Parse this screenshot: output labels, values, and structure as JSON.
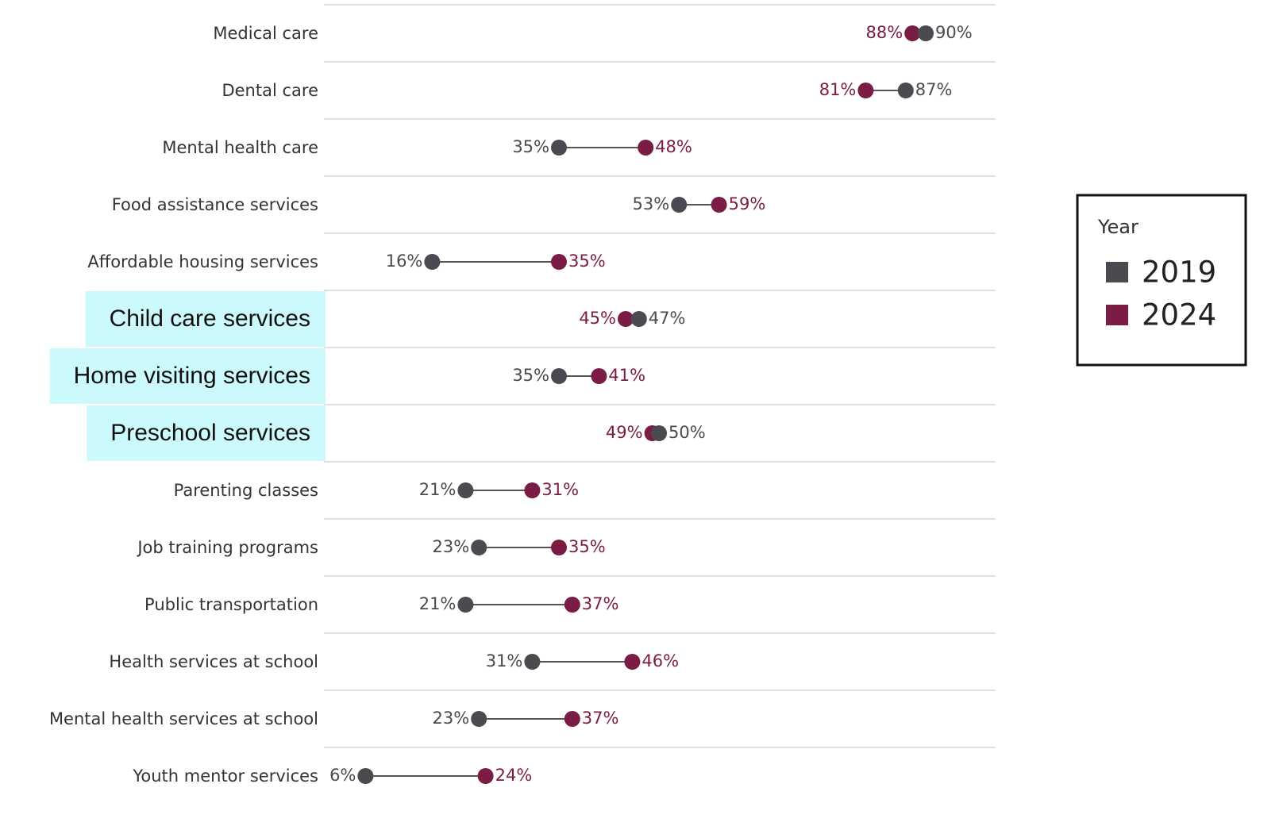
{
  "chart_data": {
    "type": "dumbbell",
    "categories": [
      "Medical care",
      "Dental care",
      "Mental health care",
      "Food assistance services",
      "Affordable housing services",
      "Child care services",
      "Home visiting services",
      "Preschool services",
      "Parenting classes",
      "Job training programs",
      "Public transportation",
      "Health services at school",
      "Mental health services at school",
      "Youth mentor services"
    ],
    "highlighted": [
      false,
      false,
      false,
      false,
      false,
      true,
      true,
      true,
      false,
      false,
      false,
      false,
      false,
      false
    ],
    "highlight_color": "#ccfafc",
    "xlim": [
      0,
      100
    ],
    "legend_title": "Year",
    "legend": "right",
    "series": [
      {
        "name": "2019",
        "color": "#4a4a50",
        "values": [
          90,
          87,
          35,
          53,
          16,
          47,
          35,
          50,
          21,
          23,
          21,
          31,
          23,
          6
        ],
        "value_labels": [
          "90%",
          "87%",
          "35%",
          "53%",
          "16%",
          "47%",
          "35%",
          "50%",
          "21%",
          "23%",
          "21%",
          "31%",
          "23%",
          "6%"
        ]
      },
      {
        "name": "2024",
        "color": "#7b1c44",
        "values": [
          88,
          81,
          48,
          59,
          35,
          45,
          41,
          49,
          31,
          35,
          37,
          46,
          37,
          24
        ],
        "value_labels": [
          "88%",
          "81%",
          "48%",
          "59%",
          "35%",
          "45%",
          "41%",
          "49%",
          "31%",
          "35%",
          "37%",
          "46%",
          "37%",
          "24%"
        ]
      }
    ]
  }
}
